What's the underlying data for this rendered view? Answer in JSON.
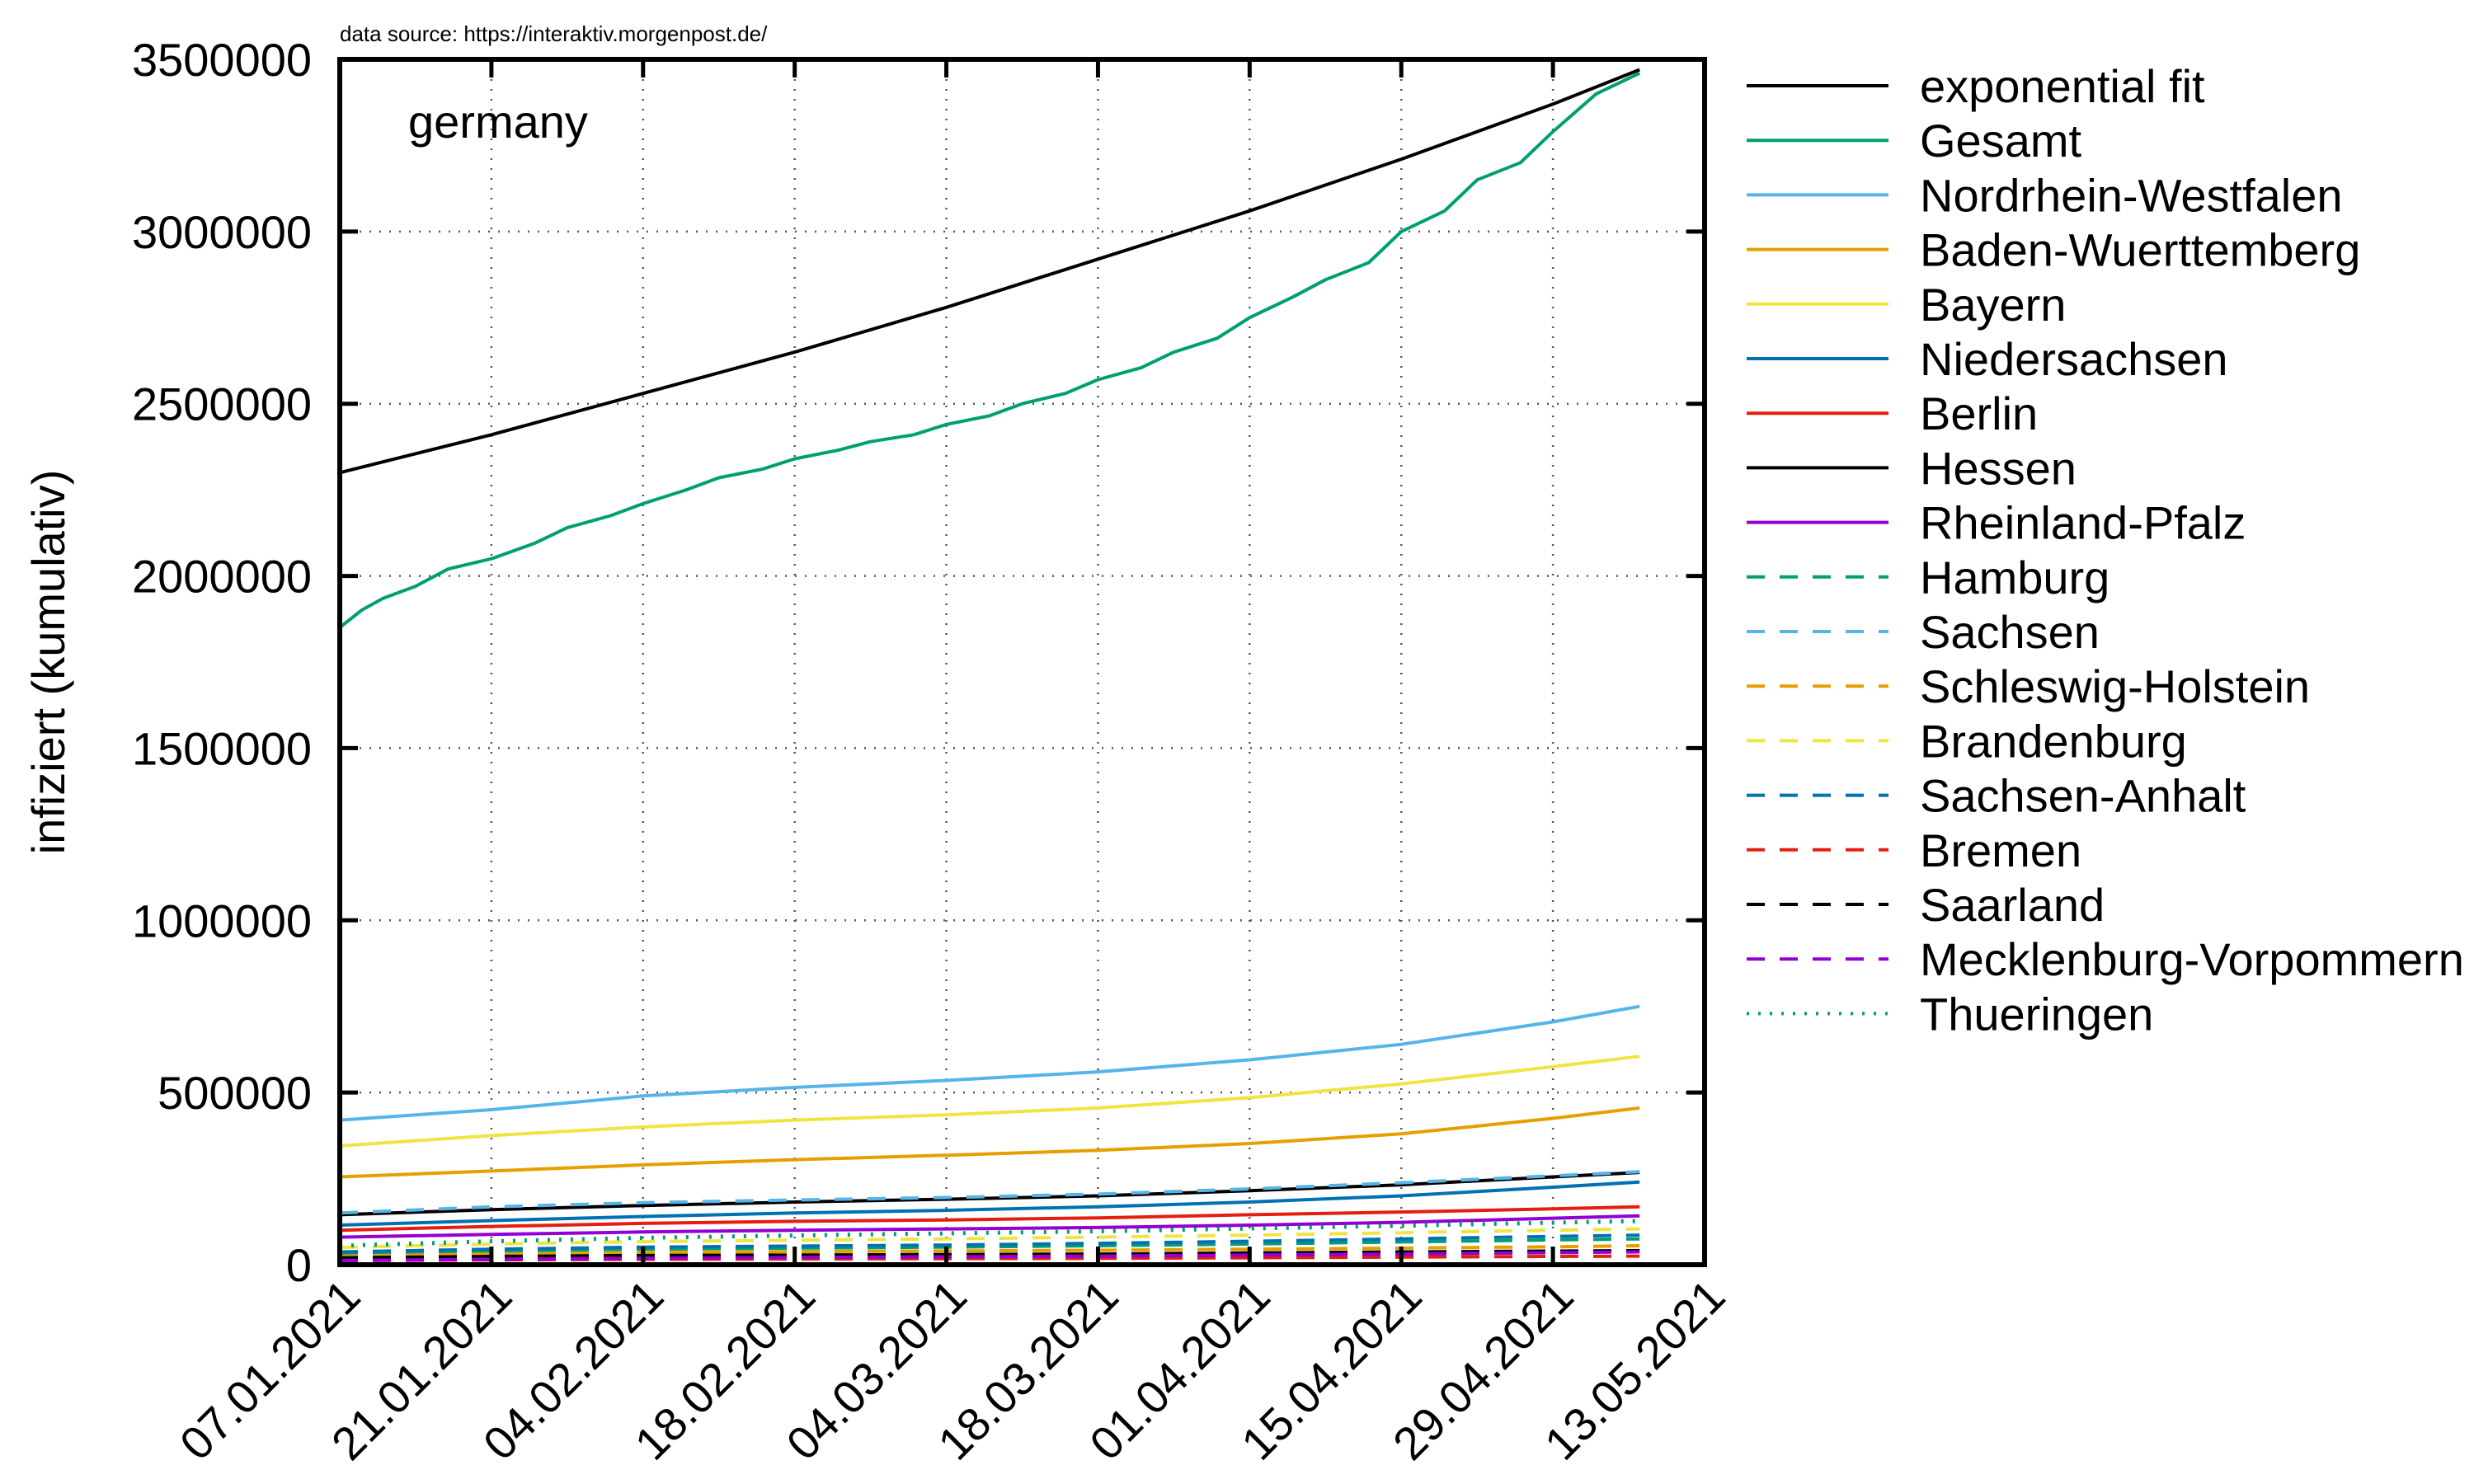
{
  "source_note": "data source: https://interaktiv.morgenpost.de/",
  "chart_data": {
    "type": "line",
    "title": "germany",
    "xlabel": "",
    "ylabel": "infiziert (kumulativ)",
    "xlim": [
      "07.01.2021",
      "13.05.2021"
    ],
    "ylim": [
      0,
      3500000
    ],
    "x_ticks": [
      "07.01.2021",
      "21.01.2021",
      "04.02.2021",
      "18.02.2021",
      "04.03.2021",
      "18.03.2021",
      "01.04.2021",
      "15.04.2021",
      "29.04.2021",
      "13.05.2021"
    ],
    "y_ticks": [
      0,
      500000,
      1000000,
      1500000,
      2000000,
      2500000,
      3000000,
      3500000
    ],
    "y_tick_labels": [
      "0",
      "500000",
      "1000000",
      "1500000",
      "2000000",
      "2500000",
      "3000000",
      "3500000"
    ],
    "grid": true,
    "legend_position": "outside-right",
    "series": [
      {
        "name": "exponential fit",
        "color": "#000000",
        "dash": "solid",
        "x": [
          "07.01.2021",
          "21.01.2021",
          "04.02.2021",
          "18.02.2021",
          "04.03.2021",
          "18.03.2021",
          "01.04.2021",
          "15.04.2021",
          "29.04.2021",
          "07.05.2021"
        ],
        "y": [
          2300000,
          2410000,
          2530000,
          2650000,
          2780000,
          2920000,
          3060000,
          3210000,
          3370000,
          3470000
        ]
      },
      {
        "name": "Gesamt",
        "color": "#009e73",
        "dash": "solid",
        "x": [
          "07.01.2021",
          "09.01.2021",
          "11.01.2021",
          "14.01.2021",
          "17.01.2021",
          "21.01.2021",
          "25.01.2021",
          "28.01.2021",
          "01.02.2021",
          "04.02.2021",
          "08.02.2021",
          "11.02.2021",
          "15.02.2021",
          "18.02.2021",
          "22.02.2021",
          "25.02.2021",
          "01.03.2021",
          "04.03.2021",
          "08.03.2021",
          "11.03.2021",
          "15.03.2021",
          "18.03.2021",
          "22.03.2021",
          "25.03.2021",
          "29.03.2021",
          "01.04.2021",
          "05.04.2021",
          "08.04.2021",
          "12.04.2021",
          "15.04.2021",
          "19.04.2021",
          "22.04.2021",
          "26.04.2021",
          "29.04.2021",
          "03.05.2021",
          "07.05.2021"
        ],
        "y": [
          1850000,
          1900000,
          1935000,
          1970000,
          2020000,
          2050000,
          2095000,
          2140000,
          2175000,
          2210000,
          2250000,
          2285000,
          2310000,
          2340000,
          2365000,
          2390000,
          2410000,
          2440000,
          2465000,
          2500000,
          2530000,
          2570000,
          2605000,
          2650000,
          2690000,
          2750000,
          2810000,
          2860000,
          2910000,
          3000000,
          3060000,
          3150000,
          3200000,
          3290000,
          3400000,
          3460000
        ]
      },
      {
        "name": "Nordrhein-Westfalen",
        "color": "#56b4e9",
        "dash": "solid",
        "x": [
          "07.01.2021",
          "21.01.2021",
          "04.02.2021",
          "18.02.2021",
          "04.03.2021",
          "18.03.2021",
          "01.04.2021",
          "15.04.2021",
          "29.04.2021",
          "07.05.2021"
        ],
        "y": [
          420000,
          450000,
          490000,
          515000,
          535000,
          560000,
          595000,
          640000,
          705000,
          750000
        ]
      },
      {
        "name": "Baden-Wuerttemberg",
        "color": "#e69f00",
        "dash": "solid",
        "x": [
          "07.01.2021",
          "21.01.2021",
          "04.02.2021",
          "18.02.2021",
          "04.03.2021",
          "18.03.2021",
          "01.04.2021",
          "15.04.2021",
          "29.04.2021",
          "07.05.2021"
        ],
        "y": [
          255000,
          272000,
          290000,
          305000,
          318000,
          332000,
          352000,
          380000,
          425000,
          455000
        ]
      },
      {
        "name": "Bayern",
        "color": "#f0e442",
        "dash": "solid",
        "x": [
          "07.01.2021",
          "21.01.2021",
          "04.02.2021",
          "18.02.2021",
          "04.03.2021",
          "18.03.2021",
          "01.04.2021",
          "15.04.2021",
          "29.04.2021",
          "07.05.2021"
        ],
        "y": [
          345000,
          375000,
          400000,
          420000,
          435000,
          455000,
          485000,
          525000,
          575000,
          605000
        ]
      },
      {
        "name": "Niedersachsen",
        "color": "#0072b2",
        "dash": "solid",
        "x": [
          "07.01.2021",
          "21.01.2021",
          "04.02.2021",
          "18.02.2021",
          "04.03.2021",
          "18.03.2021",
          "01.04.2021",
          "15.04.2021",
          "29.04.2021",
          "07.05.2021"
        ],
        "y": [
          115000,
          128000,
          140000,
          150000,
          158000,
          168000,
          182000,
          200000,
          225000,
          240000
        ]
      },
      {
        "name": "Berlin",
        "color": "#e51e10",
        "dash": "solid",
        "x": [
          "07.01.2021",
          "21.01.2021",
          "04.02.2021",
          "18.02.2021",
          "04.03.2021",
          "18.03.2021",
          "01.04.2021",
          "15.04.2021",
          "29.04.2021",
          "07.05.2021"
        ],
        "y": [
          100000,
          111000,
          120000,
          126000,
          130000,
          136000,
          145000,
          153000,
          162000,
          168000
        ]
      },
      {
        "name": "Hessen",
        "color": "#000000",
        "dash": "solid",
        "x": [
          "07.01.2021",
          "21.01.2021",
          "04.02.2021",
          "18.02.2021",
          "04.03.2021",
          "18.03.2021",
          "01.04.2021",
          "15.04.2021",
          "29.04.2021",
          "07.05.2021"
        ],
        "y": [
          145000,
          160000,
          172000,
          182000,
          190000,
          200000,
          215000,
          232000,
          255000,
          268000
        ]
      },
      {
        "name": "Rheinland-Pfalz",
        "color": "#9400d3",
        "dash": "solid",
        "x": [
          "07.01.2021",
          "21.01.2021",
          "04.02.2021",
          "18.02.2021",
          "04.03.2021",
          "18.03.2021",
          "01.04.2021",
          "15.04.2021",
          "29.04.2021",
          "07.05.2021"
        ],
        "y": [
          80000,
          88000,
          95000,
          100000,
          104000,
          108000,
          115000,
          123000,
          135000,
          142000
        ]
      },
      {
        "name": "Hamburg",
        "color": "#009e73",
        "dash": "dashed",
        "x": [
          "07.01.2021",
          "21.01.2021",
          "04.02.2021",
          "18.02.2021",
          "04.03.2021",
          "18.03.2021",
          "01.04.2021",
          "15.04.2021",
          "29.04.2021",
          "07.05.2021"
        ],
        "y": [
          32000,
          40000,
          45000,
          48000,
          51000,
          55000,
          60000,
          66000,
          72000,
          75000
        ]
      },
      {
        "name": "Sachsen",
        "color": "#56b4e9",
        "dash": "dashed",
        "x": [
          "07.01.2021",
          "21.01.2021",
          "04.02.2021",
          "18.02.2021",
          "04.03.2021",
          "18.03.2021",
          "01.04.2021",
          "15.04.2021",
          "29.04.2021",
          "07.05.2021"
        ],
        "y": [
          150000,
          168000,
          180000,
          188000,
          195000,
          205000,
          220000,
          238000,
          258000,
          270000
        ]
      },
      {
        "name": "Schleswig-Holstein",
        "color": "#e69f00",
        "dash": "dashed",
        "x": [
          "07.01.2021",
          "21.01.2021",
          "04.02.2021",
          "18.02.2021",
          "04.03.2021",
          "18.03.2021",
          "01.04.2021",
          "15.04.2021",
          "29.04.2021",
          "07.05.2021"
        ],
        "y": [
          25000,
          31000,
          35000,
          38000,
          40000,
          42000,
          45000,
          48000,
          52000,
          55000
        ]
      },
      {
        "name": "Brandenburg",
        "color": "#f0e442",
        "dash": "dashed",
        "x": [
          "07.01.2021",
          "21.01.2021",
          "04.02.2021",
          "18.02.2021",
          "04.03.2021",
          "18.03.2021",
          "01.04.2021",
          "15.04.2021",
          "29.04.2021",
          "07.05.2021"
        ],
        "y": [
          50000,
          60000,
          67000,
          71000,
          75000,
          80000,
          86000,
          93000,
          100000,
          104000
        ]
      },
      {
        "name": "Sachsen-Anhalt",
        "color": "#0072b2",
        "dash": "dashed",
        "x": [
          "07.01.2021",
          "21.01.2021",
          "04.02.2021",
          "18.02.2021",
          "04.03.2021",
          "18.03.2021",
          "01.04.2021",
          "15.04.2021",
          "29.04.2021",
          "07.05.2021"
        ],
        "y": [
          37000,
          45000,
          51000,
          54000,
          57000,
          62000,
          68000,
          75000,
          82000,
          86000
        ]
      },
      {
        "name": "Bremen",
        "color": "#e51e10",
        "dash": "dashed",
        "x": [
          "07.01.2021",
          "21.01.2021",
          "04.02.2021",
          "18.02.2021",
          "04.03.2021",
          "18.03.2021",
          "01.04.2021",
          "15.04.2021",
          "29.04.2021",
          "07.05.2021"
        ],
        "y": [
          12000,
          14000,
          15500,
          16500,
          17500,
          18500,
          20000,
          22000,
          24000,
          25000
        ]
      },
      {
        "name": "Saarland",
        "color": "#000000",
        "dash": "dashed",
        "x": [
          "07.01.2021",
          "21.01.2021",
          "04.02.2021",
          "18.02.2021",
          "04.03.2021",
          "18.03.2021",
          "01.04.2021",
          "15.04.2021",
          "29.04.2021",
          "07.05.2021"
        ],
        "y": [
          20000,
          24000,
          26500,
          28000,
          29500,
          31000,
          34000,
          37000,
          39500,
          41000
        ]
      },
      {
        "name": "Mecklenburg-Vorpommern",
        "color": "#9400d3",
        "dash": "dashed",
        "x": [
          "07.01.2021",
          "21.01.2021",
          "04.02.2021",
          "18.02.2021",
          "04.03.2021",
          "18.03.2021",
          "01.04.2021",
          "15.04.2021",
          "29.04.2021",
          "07.05.2021"
        ],
        "y": [
          12000,
          16000,
          19000,
          21000,
          23000,
          25000,
          28000,
          31000,
          35000,
          37000
        ]
      },
      {
        "name": "Thueringen",
        "color": "#009e73",
        "dash": "dotted",
        "x": [
          "07.01.2021",
          "21.01.2021",
          "04.02.2021",
          "18.02.2021",
          "04.03.2021",
          "18.03.2021",
          "01.04.2021",
          "15.04.2021",
          "29.04.2021",
          "07.05.2021"
        ],
        "y": [
          55000,
          68000,
          78000,
          85000,
          91000,
          97000,
          105000,
          113000,
          122000,
          127000
        ]
      }
    ]
  }
}
